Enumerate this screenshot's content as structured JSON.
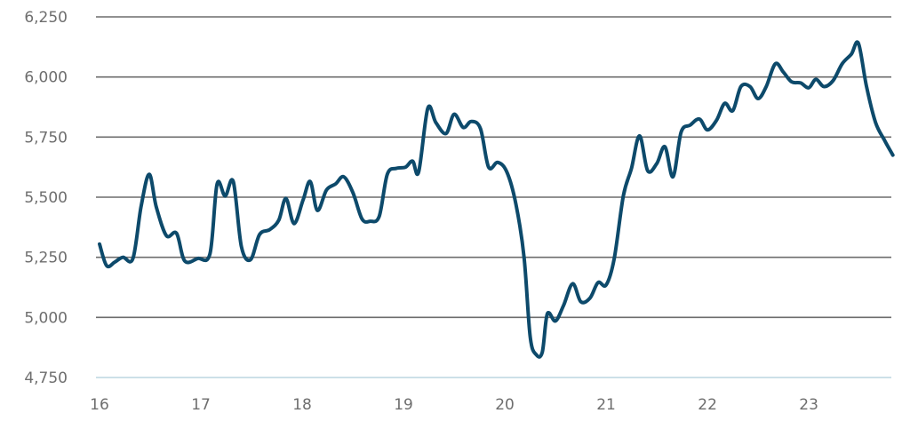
{
  "chart_data": {
    "type": "line",
    "title": "",
    "xlabel": "",
    "ylabel": "",
    "ylim": [
      4750,
      6250
    ],
    "xlim": [
      16,
      23.85
    ],
    "grid": true,
    "y_ticks": [
      4750,
      5000,
      5250,
      5500,
      5750,
      6000,
      6250
    ],
    "y_tick_labels": [
      "4,750",
      "5,000",
      "5,250",
      "5,500",
      "5,750",
      "6,000",
      "6,250"
    ],
    "x_ticks": [
      16,
      17,
      18,
      19,
      20,
      21,
      22,
      23
    ],
    "x_tick_labels": [
      "16",
      "17",
      "18",
      "19",
      "20",
      "21",
      "22",
      "23"
    ],
    "line_color": "#0d4a6b",
    "grid_color": "#6d6d6d",
    "baseline_color": "#bcd6e0",
    "series": [
      {
        "name": "",
        "points": [
          [
            16.0,
            5305
          ],
          [
            16.07,
            5215
          ],
          [
            16.15,
            5230
          ],
          [
            16.23,
            5250
          ],
          [
            16.33,
            5245
          ],
          [
            16.41,
            5460
          ],
          [
            16.49,
            5595
          ],
          [
            16.56,
            5460
          ],
          [
            16.66,
            5340
          ],
          [
            16.76,
            5350
          ],
          [
            16.84,
            5235
          ],
          [
            16.97,
            5245
          ],
          [
            17.09,
            5265
          ],
          [
            17.16,
            5555
          ],
          [
            17.24,
            5505
          ],
          [
            17.32,
            5565
          ],
          [
            17.4,
            5295
          ],
          [
            17.49,
            5240
          ],
          [
            17.58,
            5345
          ],
          [
            17.68,
            5365
          ],
          [
            17.77,
            5405
          ],
          [
            17.84,
            5495
          ],
          [
            17.92,
            5390
          ],
          [
            18.01,
            5490
          ],
          [
            18.08,
            5565
          ],
          [
            18.15,
            5445
          ],
          [
            18.24,
            5530
          ],
          [
            18.33,
            5555
          ],
          [
            18.41,
            5585
          ],
          [
            18.5,
            5520
          ],
          [
            18.59,
            5410
          ],
          [
            18.67,
            5400
          ],
          [
            18.76,
            5420
          ],
          [
            18.84,
            5595
          ],
          [
            18.93,
            5620
          ],
          [
            19.02,
            5625
          ],
          [
            19.09,
            5650
          ],
          [
            19.15,
            5605
          ],
          [
            19.24,
            5870
          ],
          [
            19.32,
            5810
          ],
          [
            19.42,
            5765
          ],
          [
            19.5,
            5845
          ],
          [
            19.59,
            5790
          ],
          [
            19.67,
            5815
          ],
          [
            19.76,
            5785
          ],
          [
            19.84,
            5625
          ],
          [
            19.93,
            5645
          ],
          [
            20.02,
            5605
          ],
          [
            20.11,
            5470
          ],
          [
            20.19,
            5250
          ],
          [
            20.25,
            4920
          ],
          [
            20.31,
            4845
          ],
          [
            20.37,
            4855
          ],
          [
            20.42,
            5015
          ],
          [
            20.5,
            4985
          ],
          [
            20.58,
            5050
          ],
          [
            20.67,
            5140
          ],
          [
            20.75,
            5065
          ],
          [
            20.84,
            5080
          ],
          [
            20.92,
            5145
          ],
          [
            21.0,
            5135
          ],
          [
            21.08,
            5245
          ],
          [
            21.17,
            5505
          ],
          [
            21.25,
            5620
          ],
          [
            21.33,
            5755
          ],
          [
            21.41,
            5610
          ],
          [
            21.5,
            5640
          ],
          [
            21.58,
            5710
          ],
          [
            21.66,
            5585
          ],
          [
            21.74,
            5770
          ],
          [
            21.83,
            5800
          ],
          [
            21.92,
            5825
          ],
          [
            22.0,
            5780
          ],
          [
            22.09,
            5820
          ],
          [
            22.17,
            5890
          ],
          [
            22.25,
            5860
          ],
          [
            22.33,
            5960
          ],
          [
            22.42,
            5960
          ],
          [
            22.5,
            5910
          ],
          [
            22.58,
            5960
          ],
          [
            22.67,
            6055
          ],
          [
            22.75,
            6020
          ],
          [
            22.83,
            5980
          ],
          [
            22.92,
            5975
          ],
          [
            23.0,
            5955
          ],
          [
            23.07,
            5990
          ],
          [
            23.15,
            5960
          ],
          [
            23.24,
            5985
          ],
          [
            23.33,
            6055
          ],
          [
            23.42,
            6095
          ],
          [
            23.49,
            6140
          ],
          [
            23.57,
            5960
          ],
          [
            23.66,
            5810
          ],
          [
            23.75,
            5735
          ],
          [
            23.83,
            5675
          ]
        ]
      }
    ]
  }
}
